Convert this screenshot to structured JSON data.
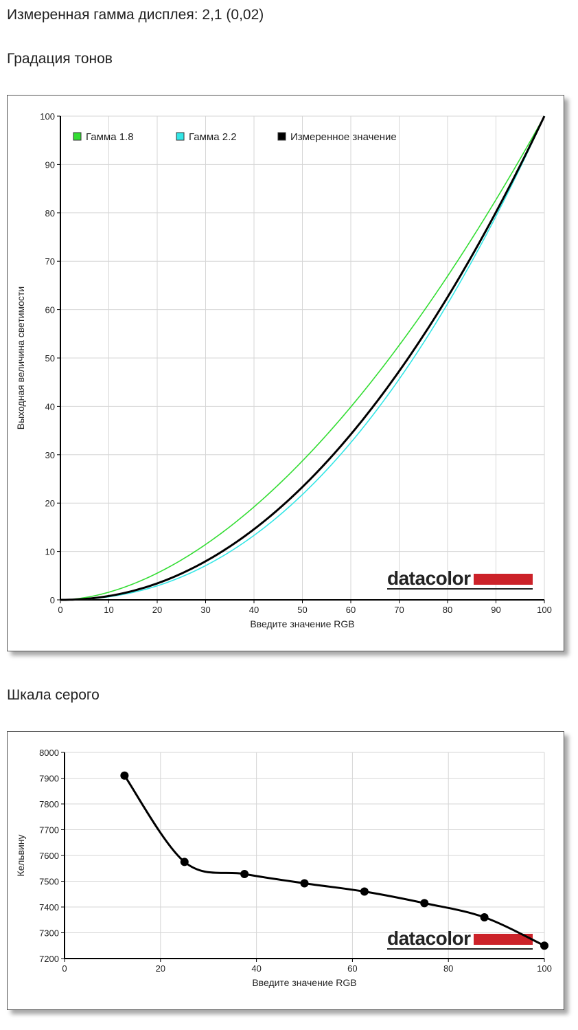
{
  "header": {
    "gamma_text": "Измеренная гамма дисплея: 2,1 (0,02)",
    "tone_title": "Градация тонов",
    "gray_title": "Шкала серого"
  },
  "logo": {
    "text": "datacolor",
    "accent_color": "#cc2229"
  },
  "chart_data": [
    {
      "type": "line",
      "xlabel": "Введите значение RGB",
      "ylabel": "Выходная величина светимости",
      "xlim": [
        0,
        100
      ],
      "ylim": [
        0,
        100
      ],
      "x_ticks": [
        0,
        10,
        20,
        30,
        40,
        50,
        60,
        70,
        80,
        90,
        100
      ],
      "y_ticks": [
        0,
        10,
        20,
        30,
        40,
        50,
        60,
        70,
        80,
        90,
        100
      ],
      "grid": true,
      "legend_position": "top-left",
      "series": [
        {
          "name": "Гамма 1.8",
          "color": "#33dd33",
          "gamma": 1.8
        },
        {
          "name": "Гамма 2.2",
          "color": "#33e6e6",
          "gamma": 2.2
        },
        {
          "name": "Измеренное значение",
          "color": "#000000",
          "gamma": 2.1
        }
      ]
    },
    {
      "type": "line",
      "xlabel": "Введите значение RGB",
      "ylabel": "Кельвину",
      "xlim": [
        0,
        100
      ],
      "ylim": [
        7200,
        8000
      ],
      "x_ticks": [
        0,
        20,
        40,
        60,
        80,
        100
      ],
      "y_ticks": [
        7200,
        7300,
        7400,
        7500,
        7600,
        7700,
        7800,
        7900,
        8000
      ],
      "grid": true,
      "series": [
        {
          "color": "#000000",
          "x": [
            12.5,
            25,
            37.5,
            50,
            62.5,
            75,
            87.5,
            100
          ],
          "y": [
            7910,
            7575,
            7528,
            7492,
            7460,
            7415,
            7360,
            7250
          ]
        }
      ]
    }
  ]
}
